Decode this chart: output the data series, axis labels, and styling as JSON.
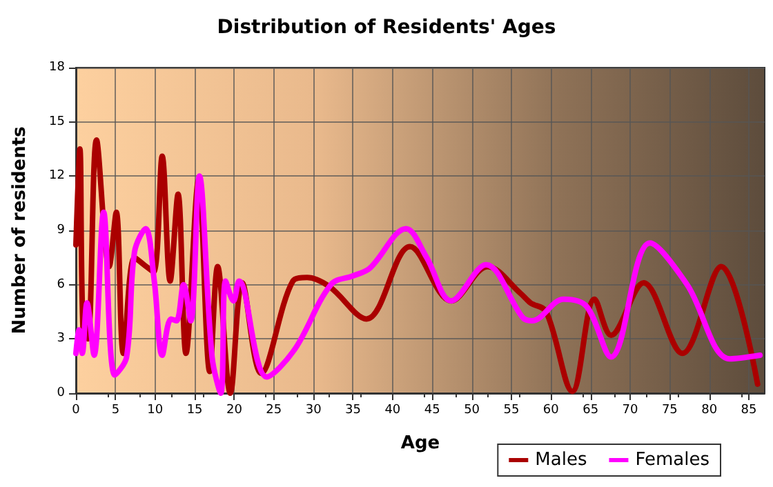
{
  "chart_data": {
    "type": "line",
    "title": "Distribution of Residents' Ages",
    "xlabel": "Age",
    "ylabel": "Number of residents",
    "xlim": [
      0,
      87
    ],
    "xticks": [
      0,
      5,
      10,
      15,
      20,
      25,
      30,
      35,
      40,
      45,
      50,
      55,
      60,
      65,
      70,
      75,
      80,
      85
    ],
    "ylim": [
      0,
      18
    ],
    "yticks": [
      0,
      3,
      6,
      9,
      12,
      15,
      18
    ],
    "grid": true,
    "legend": "bottom right",
    "marker": "none",
    "line_style": "solid",
    "series": [
      {
        "name": "Males",
        "color": "#aa0000",
        "x": [
          0,
          0.5,
          0.9,
          1.5,
          2.6,
          4.2,
          5.1,
          6,
          7.4,
          8.6,
          9.8,
          10.9,
          11.9,
          12.9,
          13.9,
          15.5,
          16.9,
          17.9,
          19.5,
          21,
          23.4,
          27.4,
          29.2,
          32,
          36.7,
          42.2,
          47.4,
          52,
          56.2,
          57.4,
          59.4,
          62.7,
          65.5,
          67.6,
          71.7,
          76.6,
          81.5,
          86.1
        ],
        "values": [
          8.2,
          13.5,
          3.5,
          3,
          14,
          7,
          10,
          2.2,
          7.5,
          7.1,
          6.7,
          13.1,
          6.2,
          11,
          2.2,
          11.8,
          1.2,
          7,
          0,
          6.1,
          1.1,
          6.2,
          6.4,
          5.9,
          4.1,
          8.1,
          5.1,
          7,
          5.5,
          5,
          4.5,
          0.1,
          5.2,
          3.2,
          6.1,
          2.2,
          7,
          0.5
        ]
      },
      {
        "name": "Females",
        "color": "#ff00ff",
        "x": [
          0,
          0.4,
          0.8,
          1.4,
          2.3,
          3.5,
          4.9,
          6.4,
          7.4,
          8.8,
          9.9,
          10.9,
          12,
          12.7,
          13.6,
          14.5,
          15.6,
          17.2,
          18.3,
          18.9,
          19.9,
          20.6,
          24.1,
          27.6,
          32.2,
          35.1,
          37.1,
          41.7,
          44.3,
          47.4,
          51.8,
          56.4,
          57.6,
          61.6,
          64.5,
          67.6,
          72.5,
          77.2,
          82.6,
          86.4
        ],
        "values": [
          2.2,
          3.5,
          2.2,
          5,
          2.1,
          10,
          1,
          2,
          7.8,
          9.1,
          6.2,
          2.1,
          4.1,
          4,
          6,
          4,
          12,
          2,
          0,
          6.2,
          5.1,
          6.2,
          0.9,
          2.4,
          6,
          6.5,
          6.9,
          9.1,
          7.5,
          5.1,
          7.1,
          4.2,
          4,
          5.2,
          4.8,
          2,
          8.3,
          6,
          1.9,
          2.1
        ]
      }
    ]
  }
}
